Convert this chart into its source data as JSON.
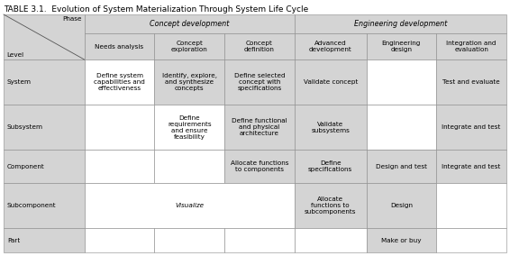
{
  "title": "TABLE 3.1.  Evolution of System Materialization Through System Life Cycle",
  "title_fontsize": 6.5,
  "header1": [
    "Concept development",
    "Engineering development"
  ],
  "header2": [
    "Needs analysis",
    "Concept\nexploration",
    "Concept\ndefinition",
    "Advanced\ndevelopment",
    "Engineering\ndesign",
    "Integration and\nevaluation"
  ],
  "row_labels": [
    "System",
    "Subsystem",
    "Component",
    "Subcomponent",
    "Part"
  ],
  "cells": [
    [
      "Define system\ncapabilities and\neffectiveness",
      "Identify, explore,\nand synthesize\nconcepts",
      "Define selected\nconcept with\nspecifications",
      "Validate concept",
      "",
      "Test and evaluate"
    ],
    [
      "",
      "Define\nrequirements\nand ensure\nfeasibility",
      "Define functional\nand physical\narchitecture",
      "Validate\nsubsystems",
      "",
      "Integrate and test"
    ],
    [
      "",
      "",
      "Allocate functions\nto components",
      "Define\nspecifications",
      "Design and test",
      "Integrate and test"
    ],
    [
      "",
      "",
      "",
      "Allocate\nfunctions to\nsubcomponents",
      "Design",
      ""
    ],
    [
      "",
      "",
      "",
      "",
      "Make or buy",
      ""
    ]
  ],
  "light_gray": "#d4d4d4",
  "white": "#ffffff",
  "cell_bg": {
    "0,0": "#d4d4d4",
    "0,1": "#ffffff",
    "0,2": "#d4d4d4",
    "0,3": "#d4d4d4",
    "0,4": "#d4d4d4",
    "0,5": "#ffffff",
    "0,6": "#d4d4d4",
    "1,0": "#d4d4d4",
    "1,1": "#ffffff",
    "1,2": "#ffffff",
    "1,3": "#d4d4d4",
    "1,4": "#d4d4d4",
    "1,5": "#ffffff",
    "1,6": "#d4d4d4",
    "2,0": "#d4d4d4",
    "2,1": "#ffffff",
    "2,2": "#ffffff",
    "2,3": "#d4d4d4",
    "2,4": "#d4d4d4",
    "2,5": "#d4d4d4",
    "2,6": "#d4d4d4",
    "3,0": "#d4d4d4",
    "3,1": "#ffffff",
    "3,2": "#ffffff",
    "3,3": "#ffffff",
    "3,4": "#d4d4d4",
    "3,5": "#d4d4d4",
    "3,6": "#ffffff",
    "4,0": "#d4d4d4",
    "4,1": "#ffffff",
    "4,2": "#ffffff",
    "4,3": "#ffffff",
    "4,4": "#ffffff",
    "4,5": "#d4d4d4",
    "4,6": "#ffffff"
  }
}
